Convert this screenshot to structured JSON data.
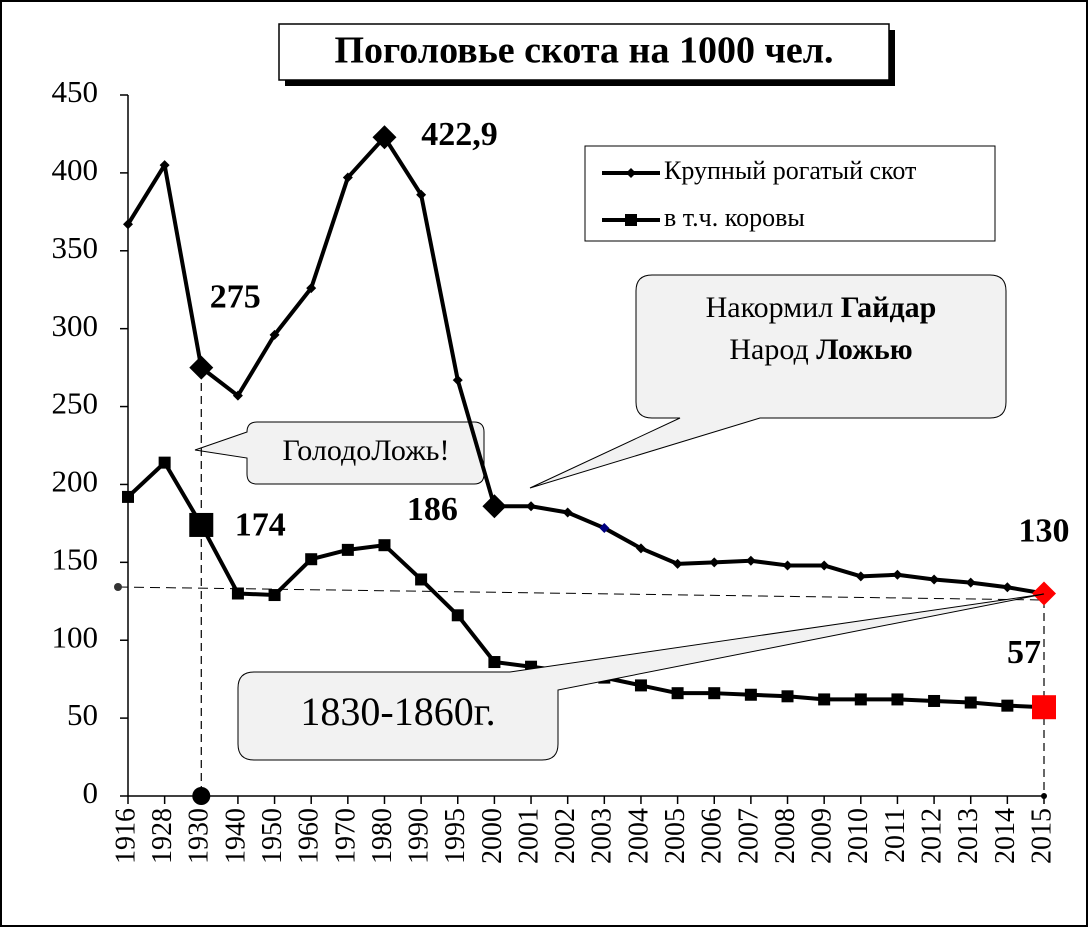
{
  "chart_data": {
    "type": "line",
    "title": "Поголовье скота на 1000 чел.",
    "categories": [
      "1916",
      "1928",
      "1930",
      "1940",
      "1950",
      "1960",
      "1970",
      "1980",
      "1990",
      "1995",
      "2000",
      "2001",
      "2002",
      "2003",
      "2004",
      "2005",
      "2006",
      "2007",
      "2008",
      "2009",
      "2010",
      "2011",
      "2012",
      "2013",
      "2014",
      "2015"
    ],
    "series": [
      {
        "name": "Крупный рогатый скот",
        "color": "#000000",
        "marker": "diamond",
        "values": [
          367,
          405,
          275,
          257,
          296,
          326,
          397,
          422.9,
          386,
          267,
          186,
          186,
          182,
          172,
          159,
          149,
          150,
          151,
          148,
          148,
          141,
          142,
          139,
          137,
          134,
          130
        ],
        "value_labels": [
          null,
          null,
          "275",
          null,
          null,
          null,
          null,
          "422,9",
          null,
          null,
          "186",
          null,
          null,
          null,
          null,
          null,
          null,
          null,
          null,
          null,
          null,
          null,
          null,
          null,
          null,
          "130"
        ],
        "large_markers": [
          2,
          7,
          10,
          25
        ],
        "marker_colors": {
          "13": "#000080",
          "25": "#ff0000"
        }
      },
      {
        "name": "в т.ч. коровы",
        "color": "#000000",
        "marker": "square",
        "values": [
          192,
          214,
          174,
          130,
          129,
          152,
          158,
          161,
          139,
          116,
          86,
          83,
          80,
          76,
          71,
          66,
          66,
          65,
          64,
          62,
          62,
          62,
          61,
          60,
          58,
          57
        ],
        "value_labels": [
          null,
          null,
          "174",
          null,
          null,
          null,
          null,
          null,
          null,
          null,
          null,
          null,
          null,
          null,
          null,
          null,
          null,
          null,
          null,
          null,
          null,
          null,
          null,
          null,
          null,
          "57"
        ],
        "large_markers": [
          2,
          25
        ],
        "marker_colors": {
          "25": "#ff0000"
        }
      }
    ],
    "ylim": [
      0,
      450
    ],
    "yticks": [
      0,
      50,
      100,
      150,
      200,
      250,
      300,
      350,
      400,
      450
    ],
    "annotations": {
      "golod": "ГолодоЛожь!",
      "gaidar": {
        "line1": [
          "Накормил",
          "Гайдар"
        ],
        "line2": [
          "Народ",
          "Ложью"
        ]
      },
      "period": "1830-1860г."
    }
  }
}
